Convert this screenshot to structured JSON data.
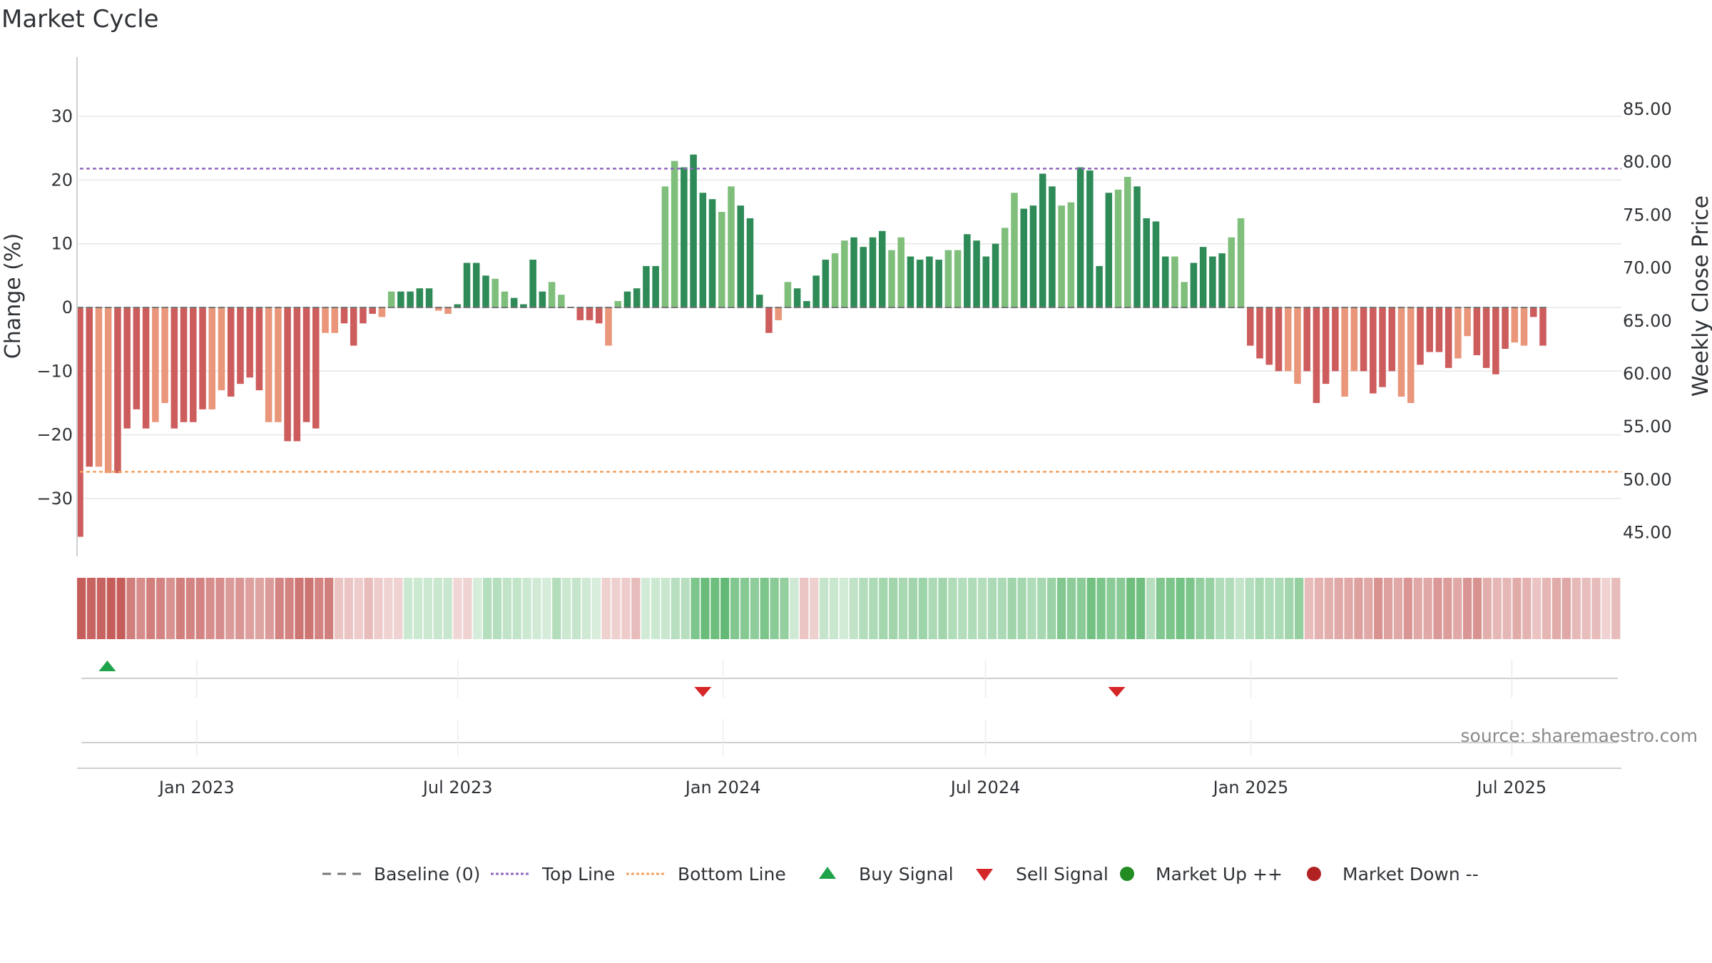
{
  "colors": {
    "up_strong": "#2e8b57",
    "up_light": "#7fbf7b",
    "down_strong": "#cd5c5c",
    "down_light": "#e9967a",
    "top_line": "#9467bd",
    "bottom_line": "#f4a261",
    "baseline": "#777777",
    "buy_signal": "#1fa34a",
    "sell_signal": "#d62728",
    "market_up": "#228b22",
    "market_down": "#b22222",
    "grid": "#e6e6e6"
  },
  "chart_data": {
    "type": "bar",
    "title": "Market Cycle",
    "ylabel_left": "Change (%)",
    "ylabel_right": "Weekly Close Price",
    "source": "source: sharemaestro.com",
    "y_left_range": [
      -39,
      40
    ],
    "y_left_ticks": [
      30,
      20,
      10,
      0,
      -10,
      -20,
      -30
    ],
    "y_left_tick_labels": [
      "30",
      "20",
      "10",
      "0",
      "−10",
      "−20",
      "−30"
    ],
    "y_right_ticks": [
      "85.00",
      "80.00",
      "75.00",
      "70.00",
      "65.00",
      "60.00",
      "55.00",
      "50.00",
      "45.00"
    ],
    "x_start": "2022-10-10",
    "x_end": "2025-09-15",
    "x_ticks": [
      {
        "date": "2023-01-01",
        "label": "Jan 2023"
      },
      {
        "date": "2023-07-01",
        "label": "Jul 2023"
      },
      {
        "date": "2024-01-01",
        "label": "Jan 2024"
      },
      {
        "date": "2024-07-01",
        "label": "Jul 2024"
      },
      {
        "date": "2025-01-01",
        "label": "Jan 2025"
      },
      {
        "date": "2025-07-01",
        "label": "Jul 2025"
      }
    ],
    "top_line": 21.8,
    "bottom_line": -25.8,
    "baseline": 0,
    "weekly_change": [
      -36,
      -25,
      -25,
      -26,
      -26,
      -19,
      -16,
      -19,
      -18,
      -15,
      -19,
      -18,
      -18,
      -16,
      -16,
      -13,
      -14,
      -12,
      -11,
      -13,
      -18,
      -18,
      -21,
      -21,
      -18,
      -19,
      -4,
      -4,
      -2.5,
      -6,
      -2.5,
      -1,
      -1.5,
      2.5,
      2.5,
      2.5,
      3,
      3,
      -0.5,
      -1,
      0.5,
      7,
      7,
      5,
      4.5,
      2.5,
      1.5,
      0.5,
      7.5,
      2.5,
      4,
      2,
      0,
      -2,
      -2,
      -2.5,
      -6,
      1,
      2.5,
      3,
      6.5,
      6.5,
      19,
      23,
      22,
      24,
      18,
      17,
      15,
      19,
      16,
      14,
      2,
      -4,
      -2,
      4,
      3,
      1,
      5,
      7.5,
      8.5,
      10.5,
      11,
      9.5,
      11,
      12,
      9,
      11,
      8,
      7.5,
      8,
      7.5,
      9,
      9,
      11.5,
      10.5,
      8,
      10,
      12.5,
      18,
      15.5,
      16,
      21,
      19,
      16,
      16.5,
      22,
      21.5,
      6.5,
      18,
      18.5,
      20.5,
      19,
      14,
      13.5,
      8,
      8,
      4,
      7,
      9.5,
      8,
      8.5,
      11,
      14,
      -6,
      -8,
      -9,
      -10,
      -10,
      -12,
      -10,
      -15,
      -12,
      -10,
      -14,
      -10,
      -10,
      -13.5,
      -12.5,
      -10,
      -14,
      -15,
      -9,
      -7,
      -7,
      -9.5,
      -8,
      -4.5,
      -7.5,
      -9.5,
      -10.5,
      -6.5,
      -5.5,
      -6,
      -1.5,
      -6
    ],
    "signals": [
      {
        "type": "buy",
        "date": "2022-10-31"
      },
      {
        "type": "sell",
        "date": "2023-12-18"
      },
      {
        "type": "sell",
        "date": "2024-09-30"
      }
    ],
    "legend": [
      "Baseline (0)",
      "Top Line",
      "Bottom Line",
      "Buy Signal",
      "Sell Signal",
      "Market Up ++",
      "Market Down --"
    ],
    "legend_placement": "bottom"
  }
}
